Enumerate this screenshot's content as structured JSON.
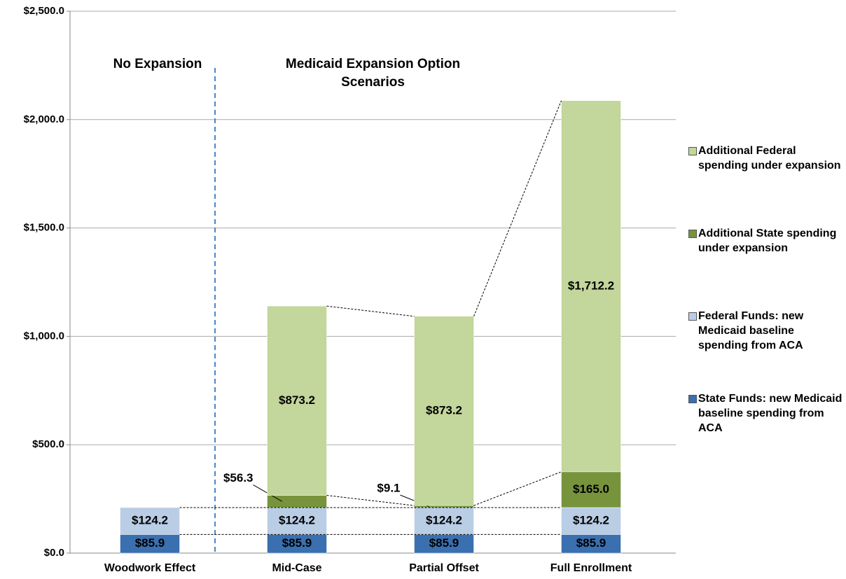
{
  "chart_data": {
    "type": "stacked_bar",
    "categories": [
      "Woodwork Effect",
      "Mid-Case",
      "Partial Offset",
      "Full Enrollment"
    ],
    "series": [
      {
        "name": "State Funds: new Medicaid baseline spending from ACA",
        "color": "#3a6fb0",
        "values": [
          85.9,
          85.9,
          85.9,
          85.9
        ],
        "value_labels": [
          "$85.9",
          "$85.9",
          "$85.9",
          "$85.9"
        ]
      },
      {
        "name": "Federal Funds: new Medicaid baseline spending from ACA",
        "color": "#b9cde5",
        "values": [
          124.2,
          124.2,
          124.2,
          124.2
        ],
        "value_labels": [
          "$124.2",
          "$124.2",
          "$124.2",
          "$124.2"
        ]
      },
      {
        "name": "Additional State spending under expansion",
        "color": "#77933c",
        "values": [
          null,
          56.3,
          9.1,
          165.0
        ],
        "value_labels": [
          null,
          "$56.3",
          "$9.1",
          "$165.0"
        ]
      },
      {
        "name": "Additional Federal spending under expansion",
        "color": "#c3d69b",
        "values": [
          null,
          873.2,
          873.2,
          1712.2
        ],
        "value_labels": [
          null,
          "$873.2",
          "$873.2",
          "$1,712.2"
        ]
      }
    ],
    "ylim": [
      0,
      2500
    ],
    "yticks": [
      {
        "value": 0,
        "label": "$0.0"
      },
      {
        "value": 500,
        "label": "$500.0"
      },
      {
        "value": 1000,
        "label": "$1,000.0"
      },
      {
        "value": 1500,
        "label": "$1,500.0"
      },
      {
        "value": 2000,
        "label": "$2,000.0"
      },
      {
        "value": 2500,
        "label": "$2,500.0"
      }
    ],
    "grid": true,
    "legend": "right",
    "annotations": [
      "No Expansion",
      "Medicaid Expansion Option Scenarios"
    ]
  }
}
